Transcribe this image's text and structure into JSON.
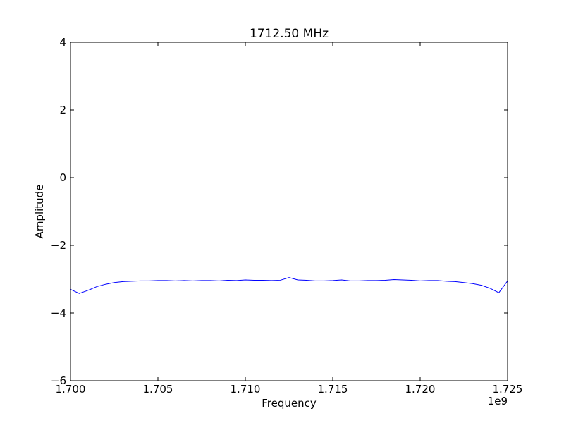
{
  "chart_data": {
    "type": "line",
    "title": "1712.50 MHz",
    "xlabel": "Frequency",
    "ylabel": "Amplitude",
    "x_offset_label": "1e9",
    "xlim": [
      1.7,
      1.725
    ],
    "ylim": [
      -6,
      4
    ],
    "x_ticks": [
      1.7,
      1.705,
      1.71,
      1.715,
      1.72,
      1.725
    ],
    "x_tick_labels": [
      "1.700",
      "1.705",
      "1.710",
      "1.715",
      "1.720",
      "1.725"
    ],
    "y_ticks": [
      -6,
      -4,
      -2,
      0,
      2,
      4
    ],
    "y_tick_labels": [
      "−6",
      "−4",
      "−2",
      "0",
      "2",
      "4"
    ],
    "grid": false,
    "series": [
      {
        "color": "#0000ff",
        "x": [
          1.7,
          1.7005,
          1.701,
          1.7015,
          1.702,
          1.7025,
          1.703,
          1.7035,
          1.704,
          1.7045,
          1.705,
          1.7055,
          1.706,
          1.7065,
          1.707,
          1.7075,
          1.708,
          1.7085,
          1.709,
          1.7095,
          1.71,
          1.7105,
          1.711,
          1.7115,
          1.712,
          1.7125,
          1.713,
          1.7135,
          1.714,
          1.7145,
          1.715,
          1.7155,
          1.716,
          1.7165,
          1.717,
          1.7175,
          1.718,
          1.7185,
          1.719,
          1.7195,
          1.72,
          1.7205,
          1.721,
          1.7215,
          1.722,
          1.7225,
          1.723,
          1.7235,
          1.724,
          1.7245,
          1.725
        ],
        "y": [
          -3.3,
          -3.42,
          -3.33,
          -3.22,
          -3.15,
          -3.1,
          -3.07,
          -3.06,
          -3.05,
          -3.05,
          -3.04,
          -3.04,
          -3.05,
          -3.04,
          -3.05,
          -3.04,
          -3.04,
          -3.05,
          -3.03,
          -3.04,
          -3.02,
          -3.03,
          -3.03,
          -3.04,
          -3.03,
          -2.95,
          -3.02,
          -3.03,
          -3.05,
          -3.05,
          -3.04,
          -3.02,
          -3.05,
          -3.05,
          -3.04,
          -3.04,
          -3.03,
          -3.01,
          -3.02,
          -3.03,
          -3.05,
          -3.04,
          -3.04,
          -3.06,
          -3.07,
          -3.1,
          -3.13,
          -3.18,
          -3.27,
          -3.4,
          -3.05
        ]
      }
    ]
  }
}
